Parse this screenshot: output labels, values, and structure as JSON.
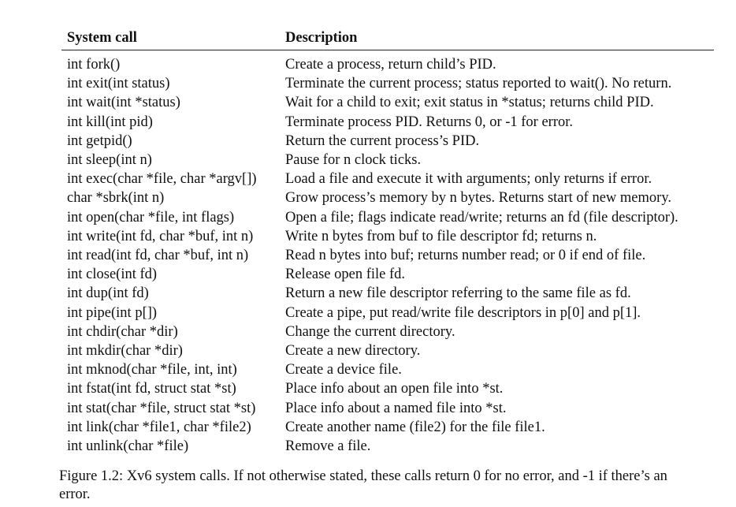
{
  "table": {
    "headers": [
      "System call",
      "Description"
    ],
    "rows": [
      [
        "int fork()",
        "Create a process, return child’s PID."
      ],
      [
        "int exit(int status)",
        "Terminate the current process; status reported to wait(). No return."
      ],
      [
        "int wait(int *status)",
        "Wait for a child to exit; exit status in *status; returns child PID."
      ],
      [
        "int kill(int pid)",
        "Terminate process PID. Returns 0, or -1 for error."
      ],
      [
        "int getpid()",
        "Return the current process’s PID."
      ],
      [
        "int sleep(int n)",
        "Pause for n clock ticks."
      ],
      [
        "int exec(char *file, char *argv[])",
        "Load a file and execute it with arguments; only returns if error."
      ],
      [
        "char *sbrk(int n)",
        "Grow process’s memory by n bytes. Returns start of new memory."
      ],
      [
        "int open(char *file, int flags)",
        "Open a file; flags indicate read/write; returns an fd (file descriptor)."
      ],
      [
        "int write(int fd, char *buf, int n)",
        "Write n bytes from buf to file descriptor fd; returns n."
      ],
      [
        "int read(int fd, char *buf, int n)",
        "Read n bytes into buf; returns number read; or 0 if end of file."
      ],
      [
        "int close(int fd)",
        "Release open file fd."
      ],
      [
        "int dup(int fd)",
        "Return a new file descriptor referring to the same file as fd."
      ],
      [
        "int pipe(int p[])",
        "Create a pipe, put read/write file descriptors in p[0] and p[1]."
      ],
      [
        "int chdir(char *dir)",
        "Change the current directory."
      ],
      [
        "int mkdir(char *dir)",
        "Create a new directory."
      ],
      [
        "int mknod(char *file, int, int)",
        "Create a device file."
      ],
      [
        "int fstat(int fd, struct stat *st)",
        "Place info about an open file into *st."
      ],
      [
        "int stat(char *file, struct stat *st)",
        "Place info about a named file into *st."
      ],
      [
        "int link(char *file1, char *file2)",
        "Create another name (file2) for the file file1."
      ],
      [
        "int unlink(char *file)",
        "Remove a file."
      ]
    ]
  },
  "caption": "Figure 1.2: Xv6 system calls. If not otherwise stated, these calls return 0 for no error, and -1 if there’s an error."
}
